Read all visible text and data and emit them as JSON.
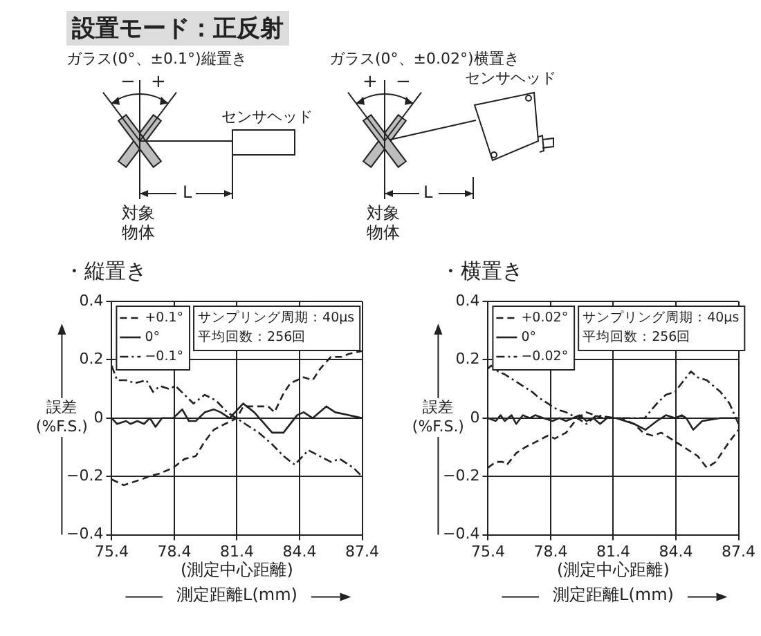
{
  "chart_data": [
    {
      "type": "other",
      "title": "設置モード：正反射",
      "annotations": [
        "ガラス(0°、±0.1°)縦置き",
        "−",
        "+",
        "センサヘッド",
        "L",
        "対象物体",
        "ガラス(0°、±0.02°)横置き",
        "+",
        "−",
        "センサヘッド",
        "L",
        "対象物体"
      ]
    },
    {
      "type": "line",
      "title": "・縦置き",
      "xlabel": "測定距離L(mm)",
      "ylabel": "誤差(%F.S.)",
      "xlim": [
        75.4,
        87.4
      ],
      "xticks": [
        75.4,
        78.4,
        81.4,
        84.4,
        87.4
      ],
      "ylim": [
        -0.4,
        0.4
      ],
      "yticks": [
        -0.4,
        -0.2,
        0,
        0.2,
        0.4
      ],
      "grid": true,
      "legend": "top left",
      "marker": "none",
      "annotations": [
        "サンプリング周期：40μs",
        "平均回数：256回",
        "(測定中心距離)"
      ],
      "series": [
        {
          "name": "+0.1°",
          "color": "#222222",
          "line_style": "dashed",
          "x": [
            75.4,
            75.98,
            76.4,
            76.84,
            77.17,
            77.7,
            78.35,
            78.89,
            79.43,
            79.86,
            80.29,
            80.83,
            81.4,
            81.7,
            82.45,
            82.9,
            83.2,
            83.6,
            83.96,
            84.28,
            84.6,
            85.03,
            85.4,
            85.9,
            86.43,
            86.76,
            87.4
          ],
          "values": [
            -0.21,
            -0.23,
            -0.22,
            -0.21,
            -0.2,
            -0.19,
            -0.17,
            -0.14,
            -0.13,
            -0.08,
            -0.04,
            -0.02,
            0,
            0.04,
            0.04,
            0.04,
            0.02,
            0.08,
            0.12,
            0.13,
            0.14,
            0.13,
            0.17,
            0.21,
            0.21,
            0.22,
            0.23
          ]
        },
        {
          "name": "0°",
          "color": "#222222",
          "line_style": "solid",
          "x": [
            75.4,
            75.66,
            76.09,
            76.3,
            76.63,
            76.95,
            77.23,
            77.5,
            77.81,
            78.35,
            78.78,
            79.1,
            79.43,
            79.86,
            80.29,
            80.62,
            81.05,
            81.7,
            82.23,
            83.09,
            83.63,
            84.28,
            84.6,
            85.03,
            85.68,
            86.11,
            86.76,
            87.4
          ],
          "values": [
            0,
            -0.02,
            -0.01,
            -0.02,
            -0.01,
            -0.02,
            0,
            -0.03,
            0,
            0,
            0.03,
            -0.01,
            -0.01,
            0.02,
            0.03,
            0.02,
            0,
            0.05,
            0.02,
            -0.05,
            -0.05,
            0.01,
            0.02,
            0,
            0.04,
            0.02,
            0.01,
            0
          ]
        },
        {
          "name": "−0.1°",
          "color": "#222222",
          "line_style": "dashdot",
          "x": [
            75.4,
            75.66,
            76.09,
            76.52,
            77.06,
            77.38,
            77.71,
            78.14,
            78.46,
            78.89,
            79.32,
            79.86,
            80.4,
            80.94,
            81.37,
            81.8,
            82.45,
            83.09,
            83.63,
            84.17,
            84.82,
            85.36,
            85.9,
            86.33,
            86.97,
            87.4
          ],
          "values": [
            0.18,
            0.13,
            0.13,
            0.12,
            0.13,
            0.09,
            0.11,
            0.1,
            0.11,
            0.08,
            0.05,
            0.08,
            0.06,
            0.02,
            0,
            -0.02,
            -0.05,
            -0.09,
            -0.13,
            -0.16,
            -0.11,
            -0.13,
            -0.15,
            -0.14,
            -0.17,
            -0.2
          ]
        }
      ]
    },
    {
      "type": "line",
      "title": "・横置き",
      "xlabel": "測定距離L(mm)",
      "ylabel": "誤差(%F.S.)",
      "xlim": [
        75.4,
        87.4
      ],
      "xticks": [
        75.4,
        78.4,
        81.4,
        84.4,
        87.4
      ],
      "ylim": [
        -0.4,
        0.4
      ],
      "yticks": [
        -0.4,
        -0.2,
        0,
        0.2,
        0.4
      ],
      "grid": true,
      "legend": "top left",
      "marker": "none",
      "annotations": [
        "サンプリング周期：40μs",
        "平均回数：256回",
        "(測定中心距離)"
      ],
      "series": [
        {
          "name": "+0.02°",
          "color": "#222222",
          "line_style": "dashed",
          "x": [
            75.4,
            75.77,
            76.1,
            76.31,
            76.75,
            77.18,
            77.73,
            78.27,
            78.6,
            79.14,
            79.57,
            79.9,
            80.12,
            80.88,
            81.75,
            82.4,
            82.83,
            83.27,
            83.7,
            84.36,
            85.01,
            85.44,
            85.88,
            86.31,
            86.97,
            87.4
          ],
          "values": [
            -0.17,
            -0.15,
            -0.15,
            -0.16,
            -0.12,
            -0.1,
            -0.08,
            -0.06,
            -0.07,
            -0.05,
            -0.01,
            0.01,
            0.02,
            0,
            0,
            -0.02,
            -0.05,
            -0.06,
            -0.05,
            -0.08,
            -0.11,
            -0.13,
            -0.17,
            -0.15,
            -0.08,
            -0.04
          ]
        },
        {
          "name": "0°",
          "color": "#222222",
          "line_style": "solid",
          "x": [
            75.4,
            75.77,
            76.0,
            76.2,
            76.53,
            76.75,
            77.07,
            77.4,
            77.66,
            78.05,
            78.49,
            78.81,
            79.14,
            79.47,
            79.79,
            80.12,
            80.44,
            80.77,
            81.1,
            81.53,
            81.97,
            82.4,
            82.94,
            83.49,
            83.92,
            84.36,
            84.68,
            84.9,
            85.23,
            85.66,
            86.53,
            87.4
          ],
          "values": [
            0,
            -0.01,
            0.01,
            -0.01,
            0.01,
            -0.02,
            0.01,
            0,
            0.01,
            0,
            -0.01,
            0,
            -0.01,
            0,
            0.01,
            -0.01,
            0,
            -0.02,
            0,
            0,
            -0.01,
            -0.02,
            -0.04,
            -0.01,
            0.01,
            0,
            0.01,
            0,
            -0.04,
            -0.01,
            0,
            0
          ]
        },
        {
          "name": "−0.02°",
          "color": "#222222",
          "line_style": "dashdot",
          "x": [
            75.4,
            75.55,
            75.88,
            76.2,
            76.64,
            77.07,
            77.51,
            77.83,
            78.27,
            78.7,
            79.14,
            79.68,
            80.12,
            80.6,
            81.5,
            82.9,
            83.49,
            83.92,
            84.36,
            84.79,
            85.12,
            85.44,
            85.88,
            86.53,
            86.97,
            87.4
          ],
          "values": [
            0.17,
            0.18,
            0.16,
            0.15,
            0.13,
            0.11,
            0.09,
            0.07,
            0.05,
            0.03,
            0.02,
            0,
            -0.02,
            0.01,
            0,
            0,
            0.05,
            0.08,
            0.09,
            0.13,
            0.16,
            0.14,
            0.13,
            0.09,
            0.05,
            -0.02
          ]
        }
      ]
    }
  ]
}
